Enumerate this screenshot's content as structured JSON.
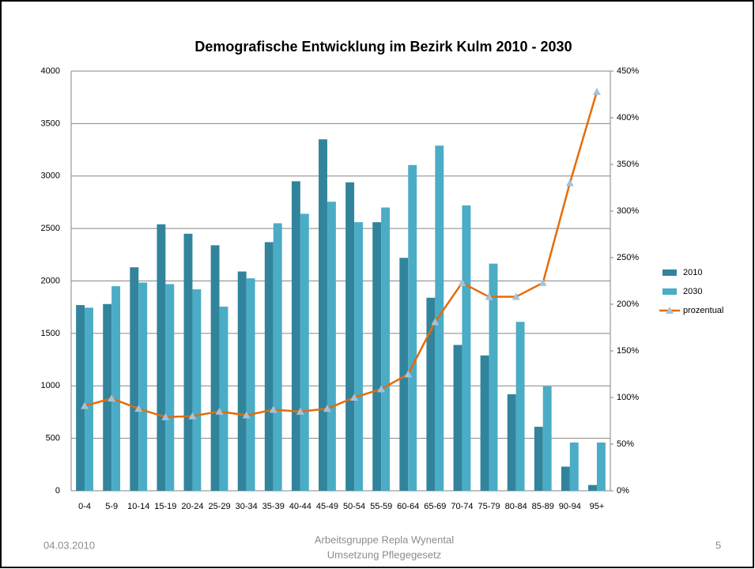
{
  "chart_data": {
    "type": "bar",
    "title": "Demografische Entwicklung im Bezirk Kulm 2010 - 2030",
    "categories": [
      "0-4",
      "5-9",
      "10-14",
      "15-19",
      "20-24",
      "25-29",
      "30-34",
      "35-39",
      "40-44",
      "45-49",
      "50-54",
      "55-59",
      "60-64",
      "65-69",
      "70-74",
      "75-79",
      "80-84",
      "85-89",
      "90-94",
      "95+"
    ],
    "series": [
      {
        "name": "2010",
        "color": "#31849b",
        "values": [
          1770,
          1780,
          2130,
          2540,
          2450,
          2340,
          2090,
          2370,
          2950,
          3350,
          2940,
          2560,
          2220,
          1840,
          1390,
          1290,
          920,
          610,
          230,
          55
        ]
      },
      {
        "name": "2030",
        "color": "#4bacc6",
        "values": [
          1745,
          1950,
          1985,
          1970,
          1920,
          1755,
          2025,
          2550,
          2640,
          2755,
          2560,
          2700,
          3105,
          3290,
          2720,
          2165,
          1610,
          995,
          460,
          460
        ]
      },
      {
        "name": "prozentual",
        "color": "#e46c0a",
        "marker_color": "#a5c2d8",
        "axis": "y2",
        "type": "line",
        "values": [
          91,
          99,
          88,
          79,
          80,
          85,
          81,
          87,
          85,
          88,
          100,
          109,
          125,
          181,
          223,
          208,
          208,
          223,
          330,
          428
        ]
      }
    ],
    "ylim": [
      0,
      4000
    ],
    "yticks": [
      0,
      500,
      1000,
      1500,
      2000,
      2500,
      3000,
      3500,
      4000
    ],
    "y2lim": [
      0,
      450
    ],
    "y2ticks": [
      {
        "value": 0,
        "label": "0%"
      },
      {
        "value": 50,
        "label": "50%"
      },
      {
        "value": 100,
        "label": "100%"
      },
      {
        "value": 150,
        "label": "150%"
      },
      {
        "value": 200,
        "label": "200%"
      },
      {
        "value": 250,
        "label": "250%"
      },
      {
        "value": 300,
        "label": "300%"
      },
      {
        "value": 350,
        "label": "350%"
      },
      {
        "value": 400,
        "label": "400%"
      },
      {
        "value": 450,
        "label": "450%"
      }
    ],
    "grid": true,
    "legend": "right"
  },
  "footer": {
    "date": "04.03.2010",
    "center": [
      "Arbeitsgruppe Repla Wynental",
      "Umsetzung Pflegegesetz"
    ],
    "page": "5"
  }
}
